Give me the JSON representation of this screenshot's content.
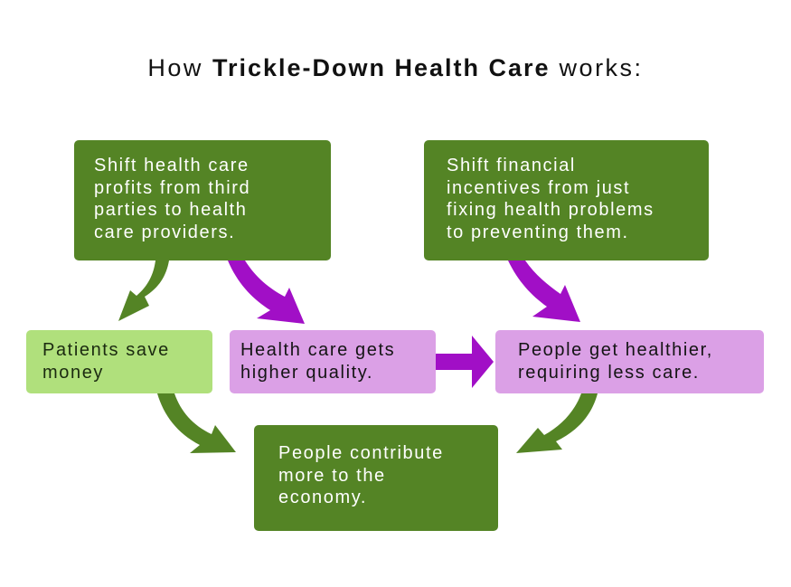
{
  "title": {
    "prefix": "How ",
    "emphasis": "Trickle-Down Health Care",
    "suffix": " works:"
  },
  "nodes": {
    "shift_profits": "Shift health care\nprofits from third\nparties to health\ncare providers.",
    "shift_incentives": "Shift financial\nincentives from just\nfixing health problems\nto preventing them.",
    "patients_save": "Patients save\nmoney",
    "quality": "Health care gets\nhigher quality.",
    "healthier": "People get healthier,\nrequiring less care.",
    "contribute": "People contribute\nmore to the\neconomy."
  },
  "colors": {
    "dark_green": "#548425",
    "light_green": "#b0e07c",
    "pink": "#dba0e6",
    "purple_arrow": "#a10fc6",
    "green_arrow": "#548425"
  },
  "edges": [
    {
      "from": "shift_profits",
      "to": "patients_save",
      "color": "green"
    },
    {
      "from": "shift_profits",
      "to": "quality",
      "color": "purple"
    },
    {
      "from": "shift_incentives",
      "to": "healthier",
      "color": "purple"
    },
    {
      "from": "quality",
      "to": "healthier",
      "color": "purple"
    },
    {
      "from": "patients_save",
      "to": "contribute",
      "color": "green"
    },
    {
      "from": "healthier",
      "to": "contribute",
      "color": "green"
    }
  ]
}
